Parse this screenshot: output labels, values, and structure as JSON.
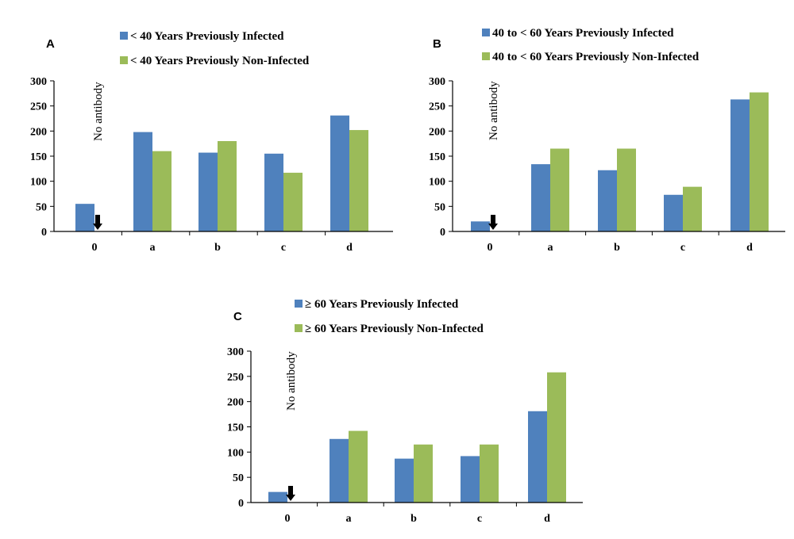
{
  "chart_data": [
    {
      "type": "bar",
      "panel": "A",
      "categories": [
        "0",
        "a",
        "b",
        "c",
        "d"
      ],
      "series": [
        {
          "name": "< 40 Years Previously Infected",
          "color": "#4f81bd",
          "values": [
            55,
            198,
            157,
            155,
            231
          ]
        },
        {
          "name": "< 40 Years Previously Non-Infected",
          "color": "#9bbb59",
          "values": [
            null,
            160,
            180,
            117,
            202
          ]
        }
      ],
      "yticks": [
        0,
        50,
        100,
        150,
        200,
        250,
        300
      ],
      "ylim": [
        0,
        300
      ],
      "annotation": "No antibody",
      "legend_position": "top"
    },
    {
      "type": "bar",
      "panel": "B",
      "categories": [
        "0",
        "a",
        "b",
        "c",
        "d"
      ],
      "series": [
        {
          "name": "40 to < 60 Years Previously Infected",
          "color": "#4f81bd",
          "values": [
            20,
            134,
            122,
            73,
            263
          ]
        },
        {
          "name": "40 to < 60 Years Previously Non-Infected",
          "color": "#9bbb59",
          "values": [
            null,
            165,
            165,
            89,
            277
          ]
        }
      ],
      "yticks": [
        0,
        50,
        100,
        150,
        200,
        250,
        300
      ],
      "ylim": [
        0,
        300
      ],
      "annotation": "No antibody",
      "legend_position": "top"
    },
    {
      "type": "bar",
      "panel": "C",
      "categories": [
        "0",
        "a",
        "b",
        "c",
        "d"
      ],
      "series": [
        {
          "name": "≥  60 Years Previously Infected",
          "color": "#4f81bd",
          "values": [
            21,
            126,
            87,
            92,
            181
          ]
        },
        {
          "name": "≥  60 Years Previously Non-Infected",
          "color": "#9bbb59",
          "values": [
            null,
            142,
            115,
            115,
            258
          ]
        }
      ],
      "yticks": [
        0,
        50,
        100,
        150,
        200,
        250,
        300
      ],
      "ylim": [
        0,
        300
      ],
      "annotation": "No antibody",
      "legend_position": "top"
    }
  ]
}
